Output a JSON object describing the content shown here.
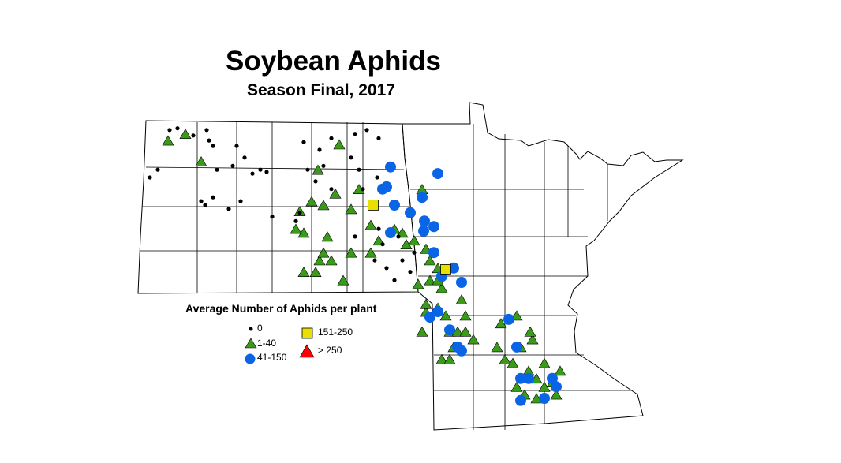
{
  "title": "Soybean Aphids",
  "subtitle": "Season Final, 2017",
  "legend": {
    "title": "Average Number of Aphids per plant",
    "items": [
      {
        "label": "0",
        "symbol": "small-black-dot",
        "color": "#000000"
      },
      {
        "label": "1-40",
        "symbol": "triangle",
        "color": "#3a9a1a"
      },
      {
        "label": "41-150",
        "symbol": "circle",
        "color": "#0a64e6"
      },
      {
        "label": "151-250",
        "symbol": "square",
        "color": "#e8e000"
      },
      {
        "label": "> 250",
        "symbol": "triangle",
        "color": "#ff0000"
      }
    ]
  },
  "sites": {
    "c0": [
      [
        -103.8,
        48.0
      ],
      [
        -103.6,
        48.14
      ],
      [
        -103.3,
        48.86
      ],
      [
        -103.1,
        48.89
      ],
      [
        -102.7,
        48.76
      ],
      [
        -102.36,
        48.86
      ],
      [
        -102.3,
        48.67
      ],
      [
        -102.2,
        48.57
      ],
      [
        -101.6,
        48.57
      ],
      [
        -101.4,
        48.36
      ],
      [
        -101.2,
        48.07
      ],
      [
        -101.0,
        48.14
      ],
      [
        -100.84,
        48.1
      ],
      [
        -102.1,
        48.14
      ],
      [
        -101.7,
        48.21
      ],
      [
        -102.5,
        47.57
      ],
      [
        -102.4,
        47.5
      ],
      [
        -102.2,
        47.64
      ],
      [
        -101.8,
        47.43
      ],
      [
        -101.5,
        47.57
      ],
      [
        -99.8,
        48.14
      ],
      [
        -99.9,
        48.64
      ],
      [
        -99.5,
        48.5
      ],
      [
        -99.4,
        48.21
      ],
      [
        -99.6,
        47.93
      ],
      [
        -99.2,
        47.79
      ],
      [
        -99.2,
        48.71
      ],
      [
        -98.6,
        48.79
      ],
      [
        -98.3,
        48.86
      ],
      [
        -98.0,
        48.71
      ],
      [
        -98.7,
        48.36
      ],
      [
        -98.5,
        48.14
      ],
      [
        -98.4,
        47.79
      ],
      [
        -98.04,
        48.0
      ],
      [
        -100.0,
        47.36
      ],
      [
        -100.1,
        47.21
      ],
      [
        -100.7,
        47.29
      ],
      [
        -98.6,
        46.93
      ],
      [
        -98.0,
        47.07
      ],
      [
        -97.9,
        46.79
      ],
      [
        -98.1,
        46.5
      ],
      [
        -97.8,
        46.36
      ],
      [
        -97.6,
        46.14
      ],
      [
        -97.4,
        46.5
      ],
      [
        -97.2,
        46.29
      ],
      [
        -97.1,
        46.64
      ],
      [
        -97.5,
        46.93
      ]
    ],
    "c1_40": [
      [
        -103.34,
        48.67
      ],
      [
        -102.9,
        48.79
      ],
      [
        -102.5,
        48.29
      ],
      [
        -99.54,
        48.14
      ],
      [
        -99.0,
        48.6
      ],
      [
        -99.7,
        47.57
      ],
      [
        -100.0,
        47.39
      ],
      [
        -99.9,
        47.0
      ],
      [
        -100.1,
        47.07
      ],
      [
        -99.4,
        47.5
      ],
      [
        -99.1,
        47.71
      ],
      [
        -98.7,
        47.43
      ],
      [
        -98.5,
        47.79
      ],
      [
        -99.3,
        46.93
      ],
      [
        -99.5,
        46.5
      ],
      [
        -99.9,
        46.29
      ],
      [
        -99.6,
        46.29
      ],
      [
        -99.2,
        46.5
      ],
      [
        -98.9,
        46.14
      ],
      [
        -98.7,
        46.64
      ],
      [
        -99.4,
        46.64
      ],
      [
        -98.2,
        47.14
      ],
      [
        -98.2,
        46.64
      ],
      [
        -97.6,
        47.07
      ],
      [
        -98.0,
        46.86
      ],
      [
        -97.4,
        47.0
      ],
      [
        -97.3,
        46.79
      ],
      [
        -97.1,
        46.86
      ],
      [
        -96.9,
        47.79
      ],
      [
        -96.8,
        46.71
      ],
      [
        -96.7,
        46.5
      ],
      [
        -96.7,
        46.14
      ],
      [
        -97.0,
        46.07
      ],
      [
        -96.5,
        46.36
      ],
      [
        -96.4,
        46.0
      ],
      [
        -96.5,
        45.64
      ],
      [
        -96.8,
        45.57
      ],
      [
        -96.9,
        45.21
      ],
      [
        -96.3,
        45.5
      ],
      [
        -96.2,
        45.21
      ],
      [
        -96.0,
        45.21
      ],
      [
        -95.8,
        45.21
      ],
      [
        -95.9,
        45.79
      ],
      [
        -95.8,
        45.5
      ],
      [
        -95.6,
        45.07
      ],
      [
        -96.1,
        44.93
      ],
      [
        -96.4,
        44.71
      ],
      [
        -96.2,
        44.71
      ],
      [
        -95.0,
        44.93
      ],
      [
        -94.8,
        44.71
      ],
      [
        -94.6,
        44.64
      ],
      [
        -94.4,
        44.93
      ],
      [
        -94.1,
        45.07
      ],
      [
        -94.2,
        44.5
      ],
      [
        -94.0,
        44.36
      ],
      [
        -93.8,
        44.21
      ],
      [
        -93.6,
        44.29
      ],
      [
        -93.5,
        44.07
      ],
      [
        -94.3,
        44.07
      ],
      [
        -94.0,
        44.0
      ],
      [
        -94.5,
        44.21
      ],
      [
        -93.8,
        44.64
      ],
      [
        -93.4,
        44.5
      ],
      [
        -94.9,
        45.36
      ],
      [
        -94.5,
        45.5
      ],
      [
        -94.16,
        45.21
      ],
      [
        -96.8,
        45.71
      ],
      [
        -96.5,
        46.14
      ]
    ],
    "c41_150": [
      [
        -97.7,
        48.19
      ],
      [
        -96.5,
        48.07
      ],
      [
        -97.8,
        47.83
      ],
      [
        -97.9,
        47.79
      ],
      [
        -96.9,
        47.64
      ],
      [
        -97.6,
        47.5
      ],
      [
        -97.2,
        47.36
      ],
      [
        -96.84,
        47.21
      ],
      [
        -96.6,
        47.11
      ],
      [
        -96.86,
        47.03
      ],
      [
        -97.7,
        47.0
      ],
      [
        -96.6,
        46.64
      ],
      [
        -96.1,
        46.36
      ],
      [
        -96.4,
        46.21
      ],
      [
        -95.9,
        46.1
      ],
      [
        -96.5,
        45.57
      ],
      [
        -96.7,
        45.47
      ],
      [
        -96.2,
        45.24
      ],
      [
        -96.0,
        44.93
      ],
      [
        -95.9,
        44.86
      ],
      [
        -94.7,
        45.43
      ],
      [
        -94.5,
        44.93
      ],
      [
        -94.4,
        44.36
      ],
      [
        -94.2,
        44.36
      ],
      [
        -93.5,
        44.21
      ],
      [
        -93.6,
        44.36
      ],
      [
        -93.8,
        44.0
      ],
      [
        -94.4,
        43.96
      ]
    ],
    "c151_250": [
      [
        -98.14,
        47.5
      ],
      [
        -96.3,
        46.33
      ]
    ],
    "c250": []
  }
}
